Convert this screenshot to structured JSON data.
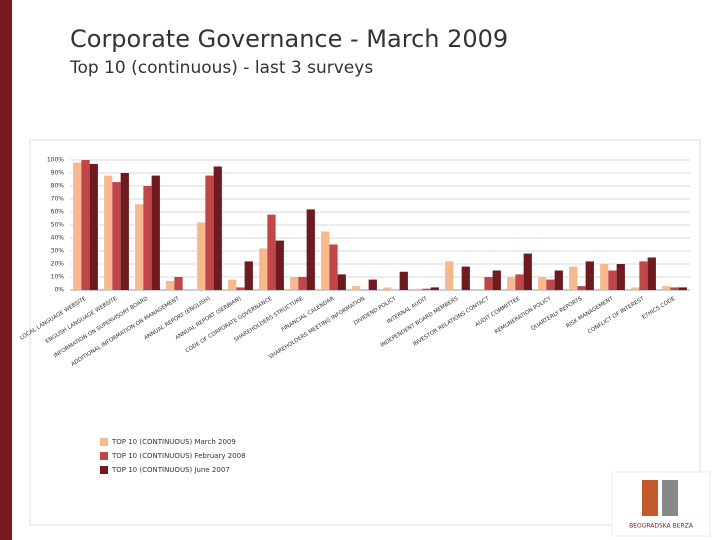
{
  "chart_data": {
    "type": "bar",
    "title": "Corporate Governance - March 2009",
    "subtitle": "Top 10 (continuous) - last 3 surveys",
    "categories": [
      "LOCAL LANGUAGE WEBSITE",
      "ENGLISH LANGUAGE WEBSITE",
      "INFORMATION ON SUPERVISORY BOARD",
      "ADDITIONAL INFORMATION ON MANAGEMENT",
      "ANNUAL REPORT (ENGLISH)",
      "ANNUAL REPORT (SERBIAN)",
      "CODE OF CORPORATE GOVERNANCE",
      "SHAREHOLDERS STRUCTURE",
      "FINANCIAL CALENDAR",
      "SHAREHOLDERS MEETING INFORMATION",
      "DIVIDEND POLICY",
      "INTERNAL AUDIT",
      "INDEPENDENT BOARD MEMBERS",
      "INVESTOR RELATIONS CONTACT",
      "AUDIT COMMITTEE",
      "REMUNERATION POLICY",
      "QUARTERLY REPORTS",
      "RISK MANAGEMENT",
      "CONFLICT OF INTEREST",
      "ETHICS CODE"
    ],
    "series": [
      {
        "name": "TOP 10 (CONTINUOUS) March 2009",
        "color": "#f6b98d",
        "values": [
          98,
          88,
          66,
          7,
          52,
          8,
          32,
          10,
          45,
          3,
          2,
          1,
          22,
          0,
          10,
          10,
          18,
          20,
          2,
          3
        ]
      },
      {
        "name": "TOP 10 (CONTINUOUS) February 2008",
        "color": "#c0464a",
        "values": [
          100,
          83,
          80,
          10,
          88,
          2,
          58,
          10,
          35,
          0,
          0,
          1,
          0,
          10,
          12,
          8,
          3,
          15,
          22,
          2
        ]
      },
      {
        "name": "TOP 10 (CONTINUOUS) June 2007",
        "color": "#6e1a1e",
        "values": [
          97,
          90,
          88,
          0,
          95,
          22,
          38,
          62,
          12,
          8,
          14,
          2,
          18,
          15,
          28,
          15,
          22,
          20,
          25,
          2
        ]
      }
    ],
    "ylim": [
      0,
      100
    ],
    "yticks": [
      {
        "value": 0,
        "label": "0%"
      },
      {
        "value": 10,
        "label": "10%"
      },
      {
        "value": 20,
        "label": "20%"
      },
      {
        "value": 30,
        "label": "30%"
      },
      {
        "value": 40,
        "label": "40%"
      },
      {
        "value": 50,
        "label": "50%"
      },
      {
        "value": 60,
        "label": "60%"
      },
      {
        "value": 70,
        "label": "70%"
      },
      {
        "value": 80,
        "label": "80%"
      },
      {
        "value": 90,
        "label": "90%"
      },
      {
        "value": 100,
        "label": "100%"
      }
    ],
    "grid": true,
    "legend": "bottom-left"
  },
  "logo": {
    "text": "BEOGRADSKA BERZA"
  }
}
